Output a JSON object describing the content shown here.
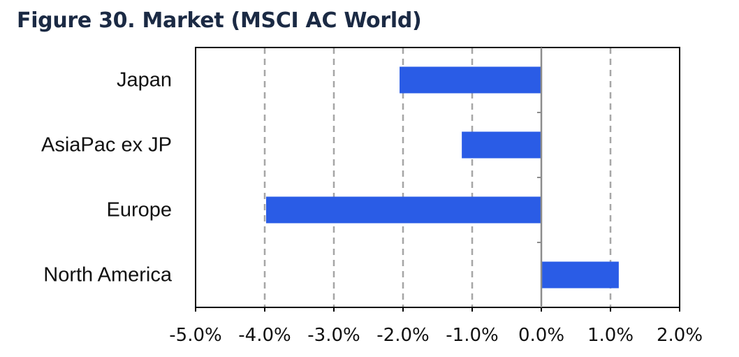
{
  "title": "Figure 30. Market (MSCI AC World)",
  "colors": {
    "bar": "#2a5ce6",
    "grid": "#a6a6a6",
    "axis": "#000000"
  },
  "chart_data": {
    "type": "bar",
    "orientation": "horizontal",
    "title": "Figure 30. Market (MSCI AC World)",
    "categories": [
      "Japan",
      "AsiaPac ex JP",
      "Europe",
      "North America"
    ],
    "values": [
      -2.05,
      -1.15,
      -3.98,
      1.12
    ],
    "unit": "%",
    "xlim": [
      -5.0,
      2.0
    ],
    "xticks": [
      -5.0,
      -4.0,
      -3.0,
      -2.0,
      -1.0,
      0.0,
      1.0,
      2.0
    ],
    "xtick_labels": [
      "-5.0%",
      "-4.0%",
      "-3.0%",
      "-2.0%",
      "-1.0%",
      "0.0%",
      "1.0%",
      "2.0%"
    ],
    "grid": "vertical dashed",
    "legend": "none"
  }
}
